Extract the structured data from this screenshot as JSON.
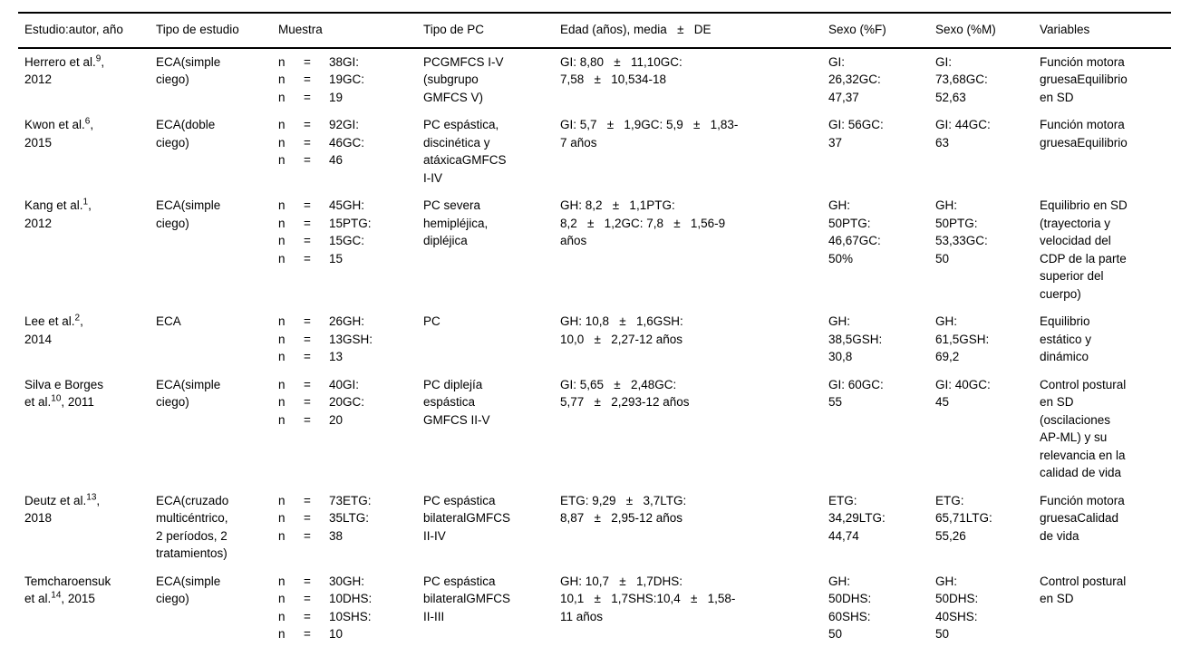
{
  "page": {
    "background_color": "#ffffff",
    "text_color": "#000000",
    "rule_color": "#000000"
  },
  "table": {
    "columns": [
      {
        "key": "estudio",
        "label": "Estudio:autor, año"
      },
      {
        "key": "tipo_estudio",
        "label": "Tipo de estudio"
      },
      {
        "key": "muestra",
        "label": "Muestra"
      },
      {
        "key": "tipo_pc",
        "label": "Tipo de PC"
      },
      {
        "key": "edad",
        "label": "Edad (años), media   ±   DE"
      },
      {
        "key": "sexo_f",
        "label": "Sexo (%F)"
      },
      {
        "key": "sexo_m",
        "label": "Sexo (%M)"
      },
      {
        "key": "variables",
        "label": "Variables"
      }
    ],
    "rows": [
      {
        "estudio": [
          {
            "text": "Herrero et al.",
            "sup": "9",
            "tail": ","
          },
          {
            "text": "2012"
          }
        ],
        "tipo_estudio": [
          "ECA(simple",
          "ciego)"
        ],
        "muestra": [
          [
            "n",
            "=",
            "38GI:"
          ],
          [
            "n",
            "=",
            "19GC:"
          ],
          [
            "n",
            "=",
            "19"
          ]
        ],
        "tipo_pc": [
          "PCGMFCS I-V",
          "(subgrupo",
          "GMFCS V)"
        ],
        "edad": [
          "GI: 8,80   ±   11,10GC:",
          "7,58   ±   10,534-18"
        ],
        "sexo_f": [
          "GI:",
          "26,32GC:",
          "47,37"
        ],
        "sexo_m": [
          "GI:",
          "73,68GC:",
          "52,63"
        ],
        "variables": [
          "Función motora",
          "gruesaEquilibrio",
          "en SD"
        ]
      },
      {
        "estudio": [
          {
            "text": "Kwon et al.",
            "sup": "6",
            "tail": ","
          },
          {
            "text": "2015"
          }
        ],
        "tipo_estudio": [
          "ECA(doble",
          "ciego)"
        ],
        "muestra": [
          [
            "n",
            "=",
            "92GI:"
          ],
          [
            "n",
            "=",
            "46GC:"
          ],
          [
            "n",
            "=",
            "46"
          ]
        ],
        "tipo_pc": [
          "PC espástica,",
          "discinética y",
          "atáxicaGMFCS",
          "I-IV"
        ],
        "edad": [
          "GI: 5,7   ±   1,9GC: 5,9   ±   1,83-",
          "7 años"
        ],
        "sexo_f": [
          "GI: 56GC:",
          "37"
        ],
        "sexo_m": [
          "GI: 44GC:",
          "63"
        ],
        "variables": [
          "Función motora",
          "gruesaEquilibrio"
        ]
      },
      {
        "estudio": [
          {
            "text": "Kang et al.",
            "sup": "1",
            "tail": ","
          },
          {
            "text": "2012"
          }
        ],
        "tipo_estudio": [
          "ECA(simple",
          "ciego)"
        ],
        "muestra": [
          [
            "n",
            "=",
            "45GH:"
          ],
          [
            "n",
            "=",
            "15PTG:"
          ],
          [
            "n",
            "=",
            "15GC:"
          ],
          [
            "n",
            "=",
            "15"
          ]
        ],
        "tipo_pc": [
          "PC severa",
          "hemipléjica,",
          "dipléjica"
        ],
        "edad": [
          "GH: 8,2   ±   1,1PTG:",
          "8,2   ±   1,2GC: 7,8   ±   1,56-9",
          "años"
        ],
        "sexo_f": [
          "GH:",
          "50PTG:",
          "46,67GC:",
          "50%"
        ],
        "sexo_m": [
          "GH:",
          "50PTG:",
          "53,33GC:",
          "50"
        ],
        "variables": [
          "Equilibrio en SD",
          "(trayectoria y",
          "velocidad del",
          "CDP de la parte",
          "superior del",
          "cuerpo)"
        ]
      },
      {
        "estudio": [
          {
            "text": "Lee et al.",
            "sup": "2",
            "tail": ","
          },
          {
            "text": "2014"
          }
        ],
        "tipo_estudio": [
          "ECA"
        ],
        "muestra": [
          [
            "n",
            "=",
            "26GH:"
          ],
          [
            "n",
            "=",
            "13GSH:"
          ],
          [
            "n",
            "=",
            "13"
          ]
        ],
        "tipo_pc": [
          "PC"
        ],
        "edad": [
          "GH: 10,8   ±   1,6GSH:",
          "10,0   ±   2,27-12 años"
        ],
        "sexo_f": [
          "GH:",
          "38,5GSH:",
          "30,8"
        ],
        "sexo_m": [
          "GH:",
          "61,5GSH:",
          "69,2"
        ],
        "variables": [
          "Equilibrio",
          "estático y",
          "dinámico"
        ]
      },
      {
        "estudio": [
          {
            "text": "Silva e Borges"
          },
          {
            "text": "et al.",
            "sup": "10",
            "tail": ", 2011"
          }
        ],
        "tipo_estudio": [
          "ECA(simple",
          "ciego)"
        ],
        "muestra": [
          [
            "n",
            "=",
            "40GI:"
          ],
          [
            "n",
            "=",
            "20GC:"
          ],
          [
            "n",
            "=",
            "20"
          ]
        ],
        "tipo_pc": [
          "PC diplejía",
          "espástica",
          "GMFCS II-V"
        ],
        "edad": [
          "GI: 5,65   ±   2,48GC:",
          "5,77   ±   2,293-12 años"
        ],
        "sexo_f": [
          "GI: 60GC:",
          "55"
        ],
        "sexo_m": [
          "GI: 40GC:",
          "45"
        ],
        "variables": [
          "Control postural",
          "en SD",
          "(oscilaciones",
          "AP-ML) y su",
          "relevancia en la",
          "calidad de vida"
        ]
      },
      {
        "estudio": [
          {
            "text": "Deutz et al.",
            "sup": "13",
            "tail": ","
          },
          {
            "text": "2018"
          }
        ],
        "tipo_estudio": [
          "ECA(cruzado",
          "multicéntrico,",
          "2 períodos, 2",
          "tratamientos)"
        ],
        "muestra": [
          [
            "n",
            "=",
            "73ETG:"
          ],
          [
            "n",
            "=",
            "35LTG:"
          ],
          [
            "n",
            "=",
            "38"
          ]
        ],
        "tipo_pc": [
          "PC espástica",
          "bilateralGMFCS",
          "II-IV"
        ],
        "edad": [
          "ETG: 9,29   ±   3,7LTG:",
          "8,87   ±   2,95-12 años"
        ],
        "sexo_f": [
          "ETG:",
          "34,29LTG:",
          "44,74"
        ],
        "sexo_m": [
          "ETG:",
          "65,71LTG:",
          "55,26"
        ],
        "variables": [
          "Función motora",
          "gruesaCalidad",
          "de vida"
        ]
      },
      {
        "estudio": [
          {
            "text": "Temcharoensuk"
          },
          {
            "text": "et al.",
            "sup": "14",
            "tail": ", 2015"
          }
        ],
        "tipo_estudio": [
          "ECA(simple",
          "ciego)"
        ],
        "muestra": [
          [
            "n",
            "=",
            "30GH:"
          ],
          [
            "n",
            "=",
            "10DHS:"
          ],
          [
            "n",
            "=",
            "10SHS:"
          ],
          [
            "n",
            "=",
            "10"
          ]
        ],
        "tipo_pc": [
          "PC espástica",
          "bilateralGMFCS",
          "II-III"
        ],
        "edad": [
          "GH: 10,7   ±   1,7DHS:",
          "10,1   ±   1,7SHS:10,4   ±   1,58-",
          "11 años"
        ],
        "sexo_f": [
          "GH:",
          "50DHS:",
          "60SHS:",
          "50"
        ],
        "sexo_m": [
          "GH:",
          "50DHS:",
          "40SHS:",
          "50"
        ],
        "variables": [
          "Control postural",
          "en SD"
        ]
      }
    ]
  }
}
